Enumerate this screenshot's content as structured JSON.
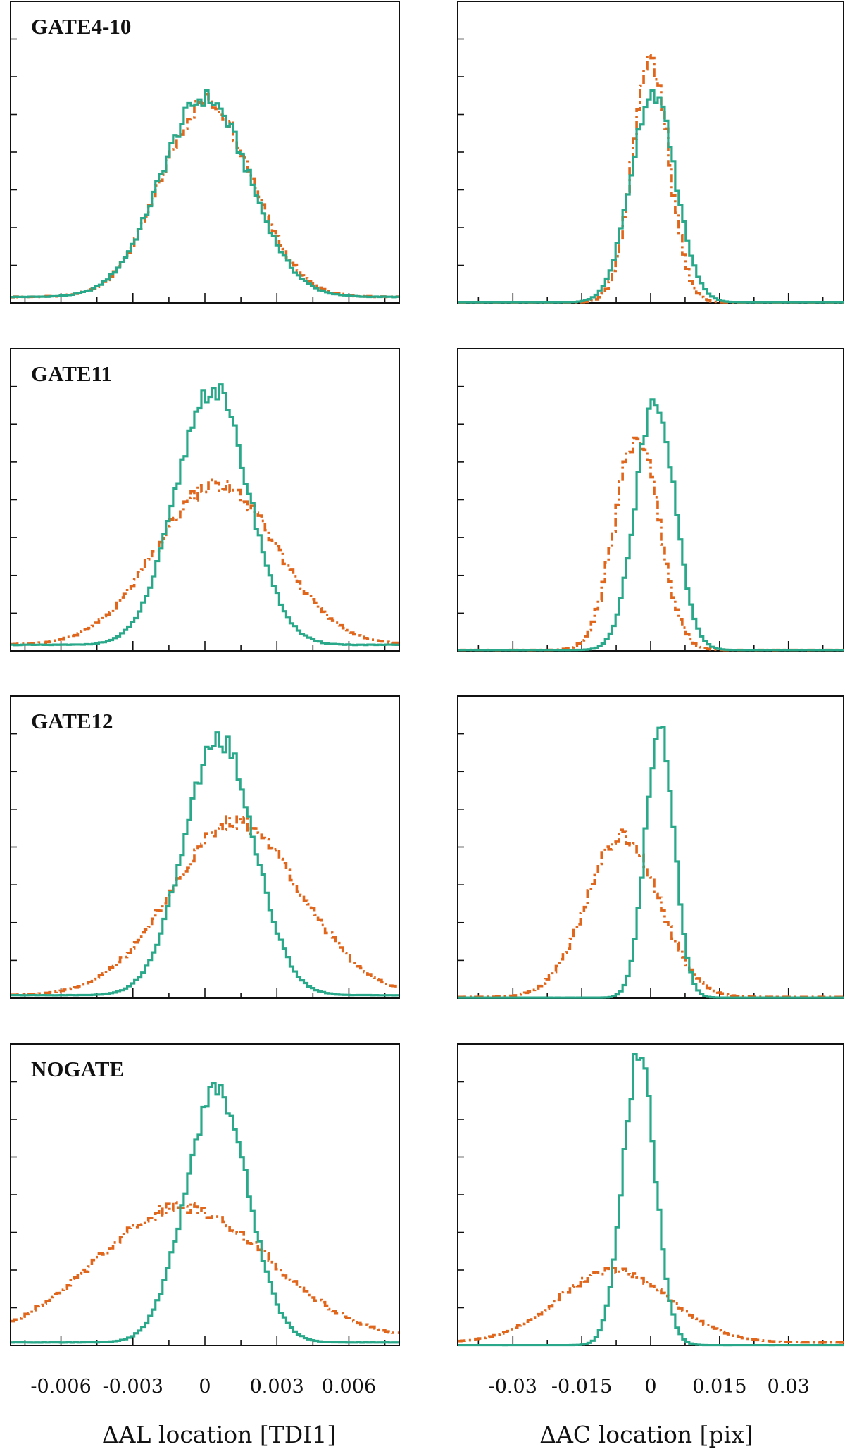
{
  "chart_data": {
    "type": "step-histogram",
    "layout": "4 rows x 2 columns",
    "xaxes": {
      "left": {
        "xlabel": "ΔAL location [TDI1]",
        "xlim": [
          -0.0081,
          0.0081
        ],
        "ticks": [
          -0.006,
          -0.003,
          0,
          0.003,
          0.006
        ],
        "tick_labels": [
          "-0.006",
          "-0.003",
          "0",
          "0.003",
          "0.006"
        ],
        "minor_step": 0.0015
      },
      "right": {
        "xlabel": "ΔAC location [pix]",
        "xlim": [
          -0.042,
          0.042
        ],
        "ticks": [
          -0.03,
          -0.015,
          0,
          0.015,
          0.03
        ],
        "tick_labels": [
          "-0.03",
          "-0.015",
          "0",
          "0.015",
          "0.03"
        ],
        "minor_step": 0.0075
      }
    },
    "ylim": [
      0,
      1
    ],
    "y_ticks": [
      0.125,
      0.25,
      0.375,
      0.5,
      0.625,
      0.75,
      0.875
    ],
    "series_styles": [
      {
        "name": "solid",
        "color": "#2aa98a",
        "dash": "solid"
      },
      {
        "name": "dashed",
        "color": "#e0661c",
        "dash": "dash-dot"
      }
    ],
    "panels": [
      {
        "row": 0,
        "label": "GATE4-10",
        "left": {
          "solid": {
            "peak": 0.68,
            "center": 0.0,
            "sigma": 0.00185,
            "floor": 0.02
          },
          "dashed": {
            "peak": 0.67,
            "center": 0.0001,
            "sigma": 0.0019,
            "floor": 0.02
          }
        },
        "right": {
          "solid": {
            "peak": 0.7,
            "center": 0.0005,
            "sigma": 0.0048,
            "floor": 0.002
          },
          "dashed": {
            "peak": 0.8,
            "center": 0.0,
            "sigma": 0.004,
            "floor": 0.002
          }
        }
      },
      {
        "row": 1,
        "label": "GATE11",
        "left": {
          "solid": {
            "peak": 0.87,
            "center": 0.0003,
            "sigma": 0.0015,
            "floor": 0.02
          },
          "dashed": {
            "peak": 0.55,
            "center": 0.0005,
            "sigma": 0.0025,
            "floor": 0.02
          }
        },
        "right": {
          "solid": {
            "peak": 0.84,
            "center": 0.001,
            "sigma": 0.0042,
            "floor": 0.003
          },
          "dashed": {
            "peak": 0.71,
            "center": -0.003,
            "sigma": 0.0048,
            "floor": 0.003
          }
        }
      },
      {
        "row": 2,
        "label": "GATE12",
        "left": {
          "solid": {
            "peak": 0.86,
            "center": 0.0006,
            "sigma": 0.00145,
            "floor": 0.01
          },
          "dashed": {
            "peak": 0.58,
            "center": 0.0013,
            "sigma": 0.0027,
            "floor": 0.01
          }
        },
        "right": {
          "solid": {
            "peak": 0.9,
            "center": 0.002,
            "sigma": 0.0031,
            "floor": 0.002
          },
          "dashed": {
            "peak": 0.54,
            "center": -0.006,
            "sigma": 0.0078,
            "floor": 0.004
          }
        }
      },
      {
        "row": 3,
        "label": "NOGATE",
        "left": {
          "solid": {
            "peak": 0.85,
            "center": 0.0005,
            "sigma": 0.0013,
            "floor": 0.01
          },
          "dashed": {
            "peak": 0.46,
            "center": -0.0009,
            "sigma": 0.0036,
            "floor": 0.02
          }
        },
        "right": {
          "solid": {
            "peak": 0.96,
            "center": -0.0025,
            "sigma": 0.0035,
            "floor": 0.001
          },
          "dashed": {
            "peak": 0.25,
            "center": -0.008,
            "sigma": 0.012,
            "floor": 0.01
          }
        }
      }
    ]
  }
}
